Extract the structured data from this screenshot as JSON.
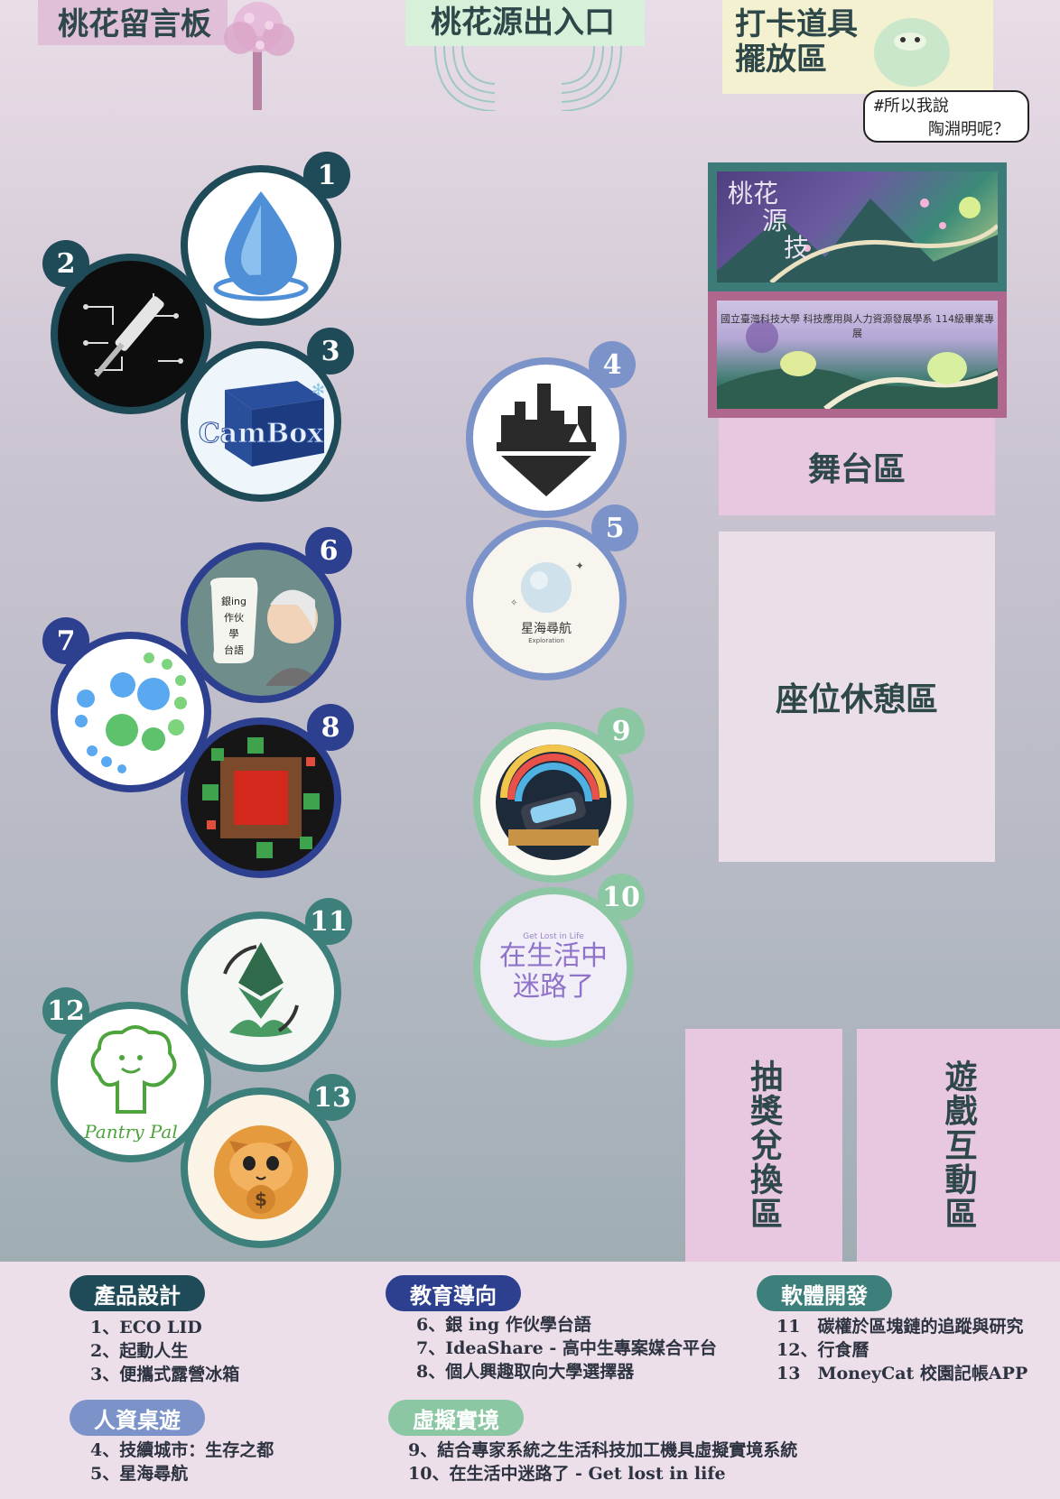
{
  "zones": {
    "board": "桃花留言板",
    "entrance": "桃花源出入口",
    "props_line1": "打卡道具",
    "props_line2": "擺放區",
    "speech_line1": "#所以我說",
    "speech_line2": "陶淵明呢？"
  },
  "banner": {
    "title_line1": "桃花",
    "title_line2": "源",
    "title_line3": "技",
    "subtitle": "國立臺灣科技大學 科技應用與人力資源發展學系 114級畢業專展"
  },
  "areas": {
    "stage": "舞台區",
    "seating": "座位休憩區",
    "prize": "抽獎兌換區",
    "game": "遊戲互動區"
  },
  "colors": {
    "product": "#1f4a57",
    "education": "#2d3f8f",
    "software": "#3d7f7b",
    "hr_game": "#7b93c9",
    "virtual": "#8ac7a2"
  },
  "projects": [
    {
      "num": "1",
      "icon": "water-drop-icon"
    },
    {
      "num": "2",
      "icon": "circuit-screwdriver-icon"
    },
    {
      "num": "3",
      "icon": "cambox-icon",
      "logo_text": "CamBox"
    },
    {
      "num": "4",
      "icon": "city-lab-icon"
    },
    {
      "num": "5",
      "icon": "planet-icon",
      "logo_text": "星海尋航",
      "logo_sub": "Exploration"
    },
    {
      "num": "6",
      "icon": "elder-speech-icon",
      "logo_text": "銀ing作伙學台語"
    },
    {
      "num": "7",
      "icon": "dots-icon"
    },
    {
      "num": "8",
      "icon": "pixel-frame-icon"
    },
    {
      "num": "9",
      "icon": "vr-headset-icon"
    },
    {
      "num": "10",
      "icon": "lost-in-life-icon",
      "logo_text": "在生活中迷路了",
      "logo_sub": "Get Lost in Life"
    },
    {
      "num": "11",
      "icon": "ethereum-leaf-icon"
    },
    {
      "num": "12",
      "icon": "tree-pantry-icon",
      "logo_text": "Pantry Pal"
    },
    {
      "num": "13",
      "icon": "cat-coin-icon"
    }
  ],
  "legend": {
    "product": {
      "label": "產品設計",
      "items": [
        "1、ECO LID",
        "2、起動人生",
        "3、便攜式露營冰箱"
      ]
    },
    "education": {
      "label": "教育導向",
      "items": [
        "6、銀 ing 作伙學台語",
        "7、IdeaShare - 高中生專案媒合平台",
        "8、個人興趣取向大學選擇器"
      ]
    },
    "software": {
      "label": "軟體開發",
      "items": [
        "11　碳權於區塊鏈的追蹤與研究",
        "12、行食曆",
        "13　MoneyCat 校園記帳APP"
      ]
    },
    "hr_game": {
      "label": "人資桌遊",
      "items": [
        "4、技續城市：生存之都",
        "5、星海尋航"
      ]
    },
    "virtual": {
      "label": "虛擬實境",
      "items": [
        "9、結合專家系統之生活科技加工機具虛擬實境系統",
        "10、在生活中迷路了 - Get lost in life"
      ]
    }
  }
}
